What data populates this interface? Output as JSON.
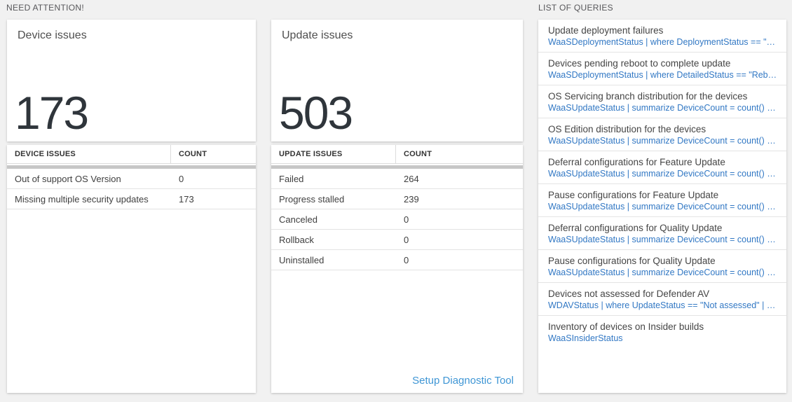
{
  "headers": {
    "need_attention": "NEED ATTENTION!",
    "list_of_queries": "LIST OF QUERIES"
  },
  "device_issues": {
    "tile_title": "Device issues",
    "tile_count": "173",
    "table": {
      "col_issue": "DEVICE ISSUES",
      "col_count": "COUNT",
      "rows": [
        {
          "label": "Out of support OS Version",
          "count": "0"
        },
        {
          "label": "Missing multiple security updates",
          "count": "173"
        }
      ]
    }
  },
  "update_issues": {
    "tile_title": "Update issues",
    "tile_count": "503",
    "table": {
      "col_issue": "UPDATE ISSUES",
      "col_count": "COUNT",
      "rows": [
        {
          "label": "Failed",
          "count": "264"
        },
        {
          "label": "Progress stalled",
          "count": "239"
        },
        {
          "label": "Canceled",
          "count": "0"
        },
        {
          "label": "Rollback",
          "count": "0"
        },
        {
          "label": "Uninstalled",
          "count": "0"
        }
      ]
    },
    "footer_link": "Setup Diagnostic Tool"
  },
  "queries": {
    "items": [
      {
        "title": "Update deployment failures",
        "query": "WaaSDeploymentStatus | where DeploymentStatus == \"Failed\" |..."
      },
      {
        "title": "Devices pending reboot to complete update",
        "query": "WaaSDeploymentStatus | where DetailedStatus == \"Reboot pend..."
      },
      {
        "title": "OS Servicing branch distribution for the devices",
        "query": "WaaSUpdateStatus | summarize DeviceCount = count() by OSSer..."
      },
      {
        "title": "OS Edition distribution for the devices",
        "query": "WaaSUpdateStatus | summarize DeviceCount = count() by OSEdit..."
      },
      {
        "title": "Deferral configurations for Feature Update",
        "query": "WaaSUpdateStatus | summarize DeviceCount = count() by Featur..."
      },
      {
        "title": "Pause configurations for Feature Update",
        "query": "WaaSUpdateStatus | summarize DeviceCount = count() by Featur..."
      },
      {
        "title": "Deferral configurations for Quality Update",
        "query": "WaaSUpdateStatus | summarize DeviceCount = count() by Qualit..."
      },
      {
        "title": "Pause configurations for Quality Update",
        "query": "WaaSUpdateStatus | summarize DeviceCount = count() by Qualit..."
      },
      {
        "title": "Devices not assessed for Defender AV",
        "query": "WDAVStatus | where UpdateStatus == \"Not assessed\" | render ta..."
      },
      {
        "title": "Inventory of devices on Insider builds",
        "query": "WaaSInsiderStatus"
      }
    ]
  },
  "colors": {
    "page_bg": "#f1f1f1",
    "big_number": "#2f353b",
    "thick_bar": "#c7c7c7",
    "accent_link": "#3f96d5",
    "query_link": "#3278c4"
  }
}
